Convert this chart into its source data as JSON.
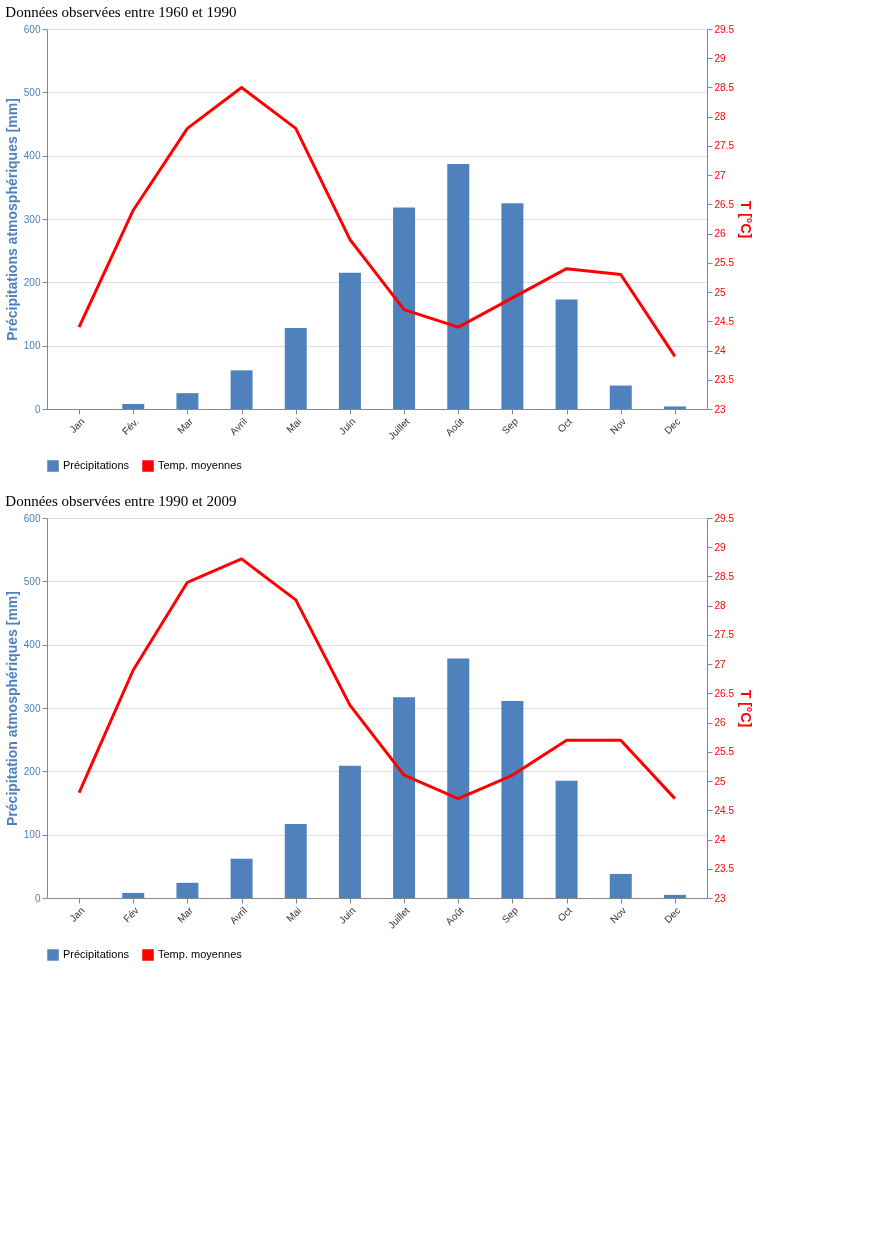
{
  "chart_data": [
    {
      "type": "bar",
      "title": "Données observées entre 1960 et 1990",
      "categories": [
        "Jan",
        "Fév.",
        "Mar",
        "Avril",
        "Mai",
        "Juin",
        "Juillet",
        "Août",
        "Sep",
        "Oct",
        "Nov",
        "Dec"
      ],
      "ylabel": "Précipitations atmosphériques [mm]",
      "y2label": "T [°C]",
      "ylim": [
        0,
        600
      ],
      "yticks": [
        0,
        100,
        200,
        300,
        400,
        500,
        600
      ],
      "y2lim": [
        23,
        29.5
      ],
      "y2ticks": [
        23,
        23.5,
        24,
        24.5,
        25,
        25.5,
        26,
        26.5,
        27,
        27.5,
        28,
        28.5,
        29,
        29.5
      ],
      "grid": "y",
      "legend": "bottom",
      "series": [
        {
          "name": "Précipitations",
          "color": "#4f81bd",
          "values": [
            0,
            8,
            25,
            61,
            128,
            215,
            318,
            387,
            325,
            173,
            37,
            4
          ]
        },
        {
          "name": "Temp. moyennes",
          "type": "line",
          "axis": "y2",
          "color": "#ff0000",
          "values": [
            24.4,
            26.4,
            27.8,
            28.5,
            27.8,
            25.9,
            24.7,
            24.4,
            24.9,
            25.4,
            25.3,
            23.9
          ]
        }
      ]
    },
    {
      "type": "bar",
      "title": "Données observées entre 1990 et 2009",
      "categories": [
        "Jan",
        "Fév",
        "Mar",
        "Avril",
        "Mai",
        "Juin",
        "Juillet",
        "Août",
        "Sep",
        "Oct",
        "Nov",
        "Dec"
      ],
      "ylabel": "Précipitation atmosphériques [mm]",
      "y2label": "T [°C]",
      "ylim": [
        0,
        600
      ],
      "yticks": [
        0,
        100,
        200,
        300,
        400,
        500,
        600
      ],
      "y2lim": [
        23,
        29.5
      ],
      "y2ticks": [
        23,
        23.5,
        24,
        24.5,
        25,
        25.5,
        26,
        26.5,
        27,
        27.5,
        28,
        28.5,
        29,
        29.5
      ],
      "grid": "y",
      "legend": "bottom",
      "series": [
        {
          "name": "Précipitations",
          "color": "#4f81bd",
          "values": [
            0,
            8,
            24,
            62,
            117,
            209,
            317,
            378,
            311,
            185,
            38,
            5
          ]
        },
        {
          "name": "Temp. moyennes",
          "type": "line",
          "axis": "y2",
          "color": "#ff0000",
          "values": [
            24.8,
            26.9,
            28.4,
            28.8,
            28.1,
            26.3,
            25.1,
            24.7,
            25.1,
            25.7,
            25.7,
            24.7
          ]
        }
      ]
    }
  ]
}
